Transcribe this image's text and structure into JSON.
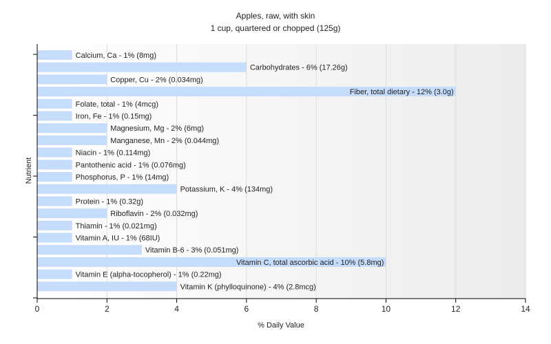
{
  "chart_data": {
    "type": "bar",
    "orientation": "horizontal",
    "title": "Apples, raw, with skin",
    "subtitle": "1 cup, quartered or chopped (125g)",
    "xlabel": "% Daily Value",
    "ylabel": "Nutrient",
    "xlim": [
      0,
      14
    ],
    "xticks": [
      "0",
      "2",
      "4",
      "6",
      "8",
      "10",
      "12",
      "14"
    ],
    "grid": true,
    "bar_color": "#c6dcfb",
    "categories": [
      "Calcium, Ca - 1% (8mg)",
      "Carbohydrates - 6% (17.26g)",
      "Copper, Cu - 2% (0.034mg)",
      "Fiber, total dietary - 12% (3.0g)",
      "Folate, total - 1% (4mcg)",
      "Iron, Fe - 1% (0.15mg)",
      "Magnesium, Mg - 2% (6mg)",
      "Manganese, Mn - 2% (0.044mg)",
      "Niacin - 1% (0.114mg)",
      "Pantothenic acid - 1% (0.076mg)",
      "Phosphorus, P - 1% (14mg)",
      "Potassium, K - 4% (134mg)",
      "Protein - 1% (0.32g)",
      "Riboflavin - 2% (0.032mg)",
      "Thiamin - 1% (0.021mg)",
      "Vitamin A, IU - 1% (68IU)",
      "Vitamin B-6 - 3% (0.051mg)",
      "Vitamin C, total ascorbic acid - 10% (5.8mg)",
      "Vitamin E (alpha-tocopherol) - 1% (0.22mg)",
      "Vitamin K (phylloquinone) - 4% (2.8mcg)"
    ],
    "values": [
      1,
      6,
      2,
      12,
      1,
      1,
      2,
      2,
      1,
      1,
      1,
      4,
      1,
      2,
      1,
      1,
      3,
      10,
      1,
      4
    ]
  }
}
